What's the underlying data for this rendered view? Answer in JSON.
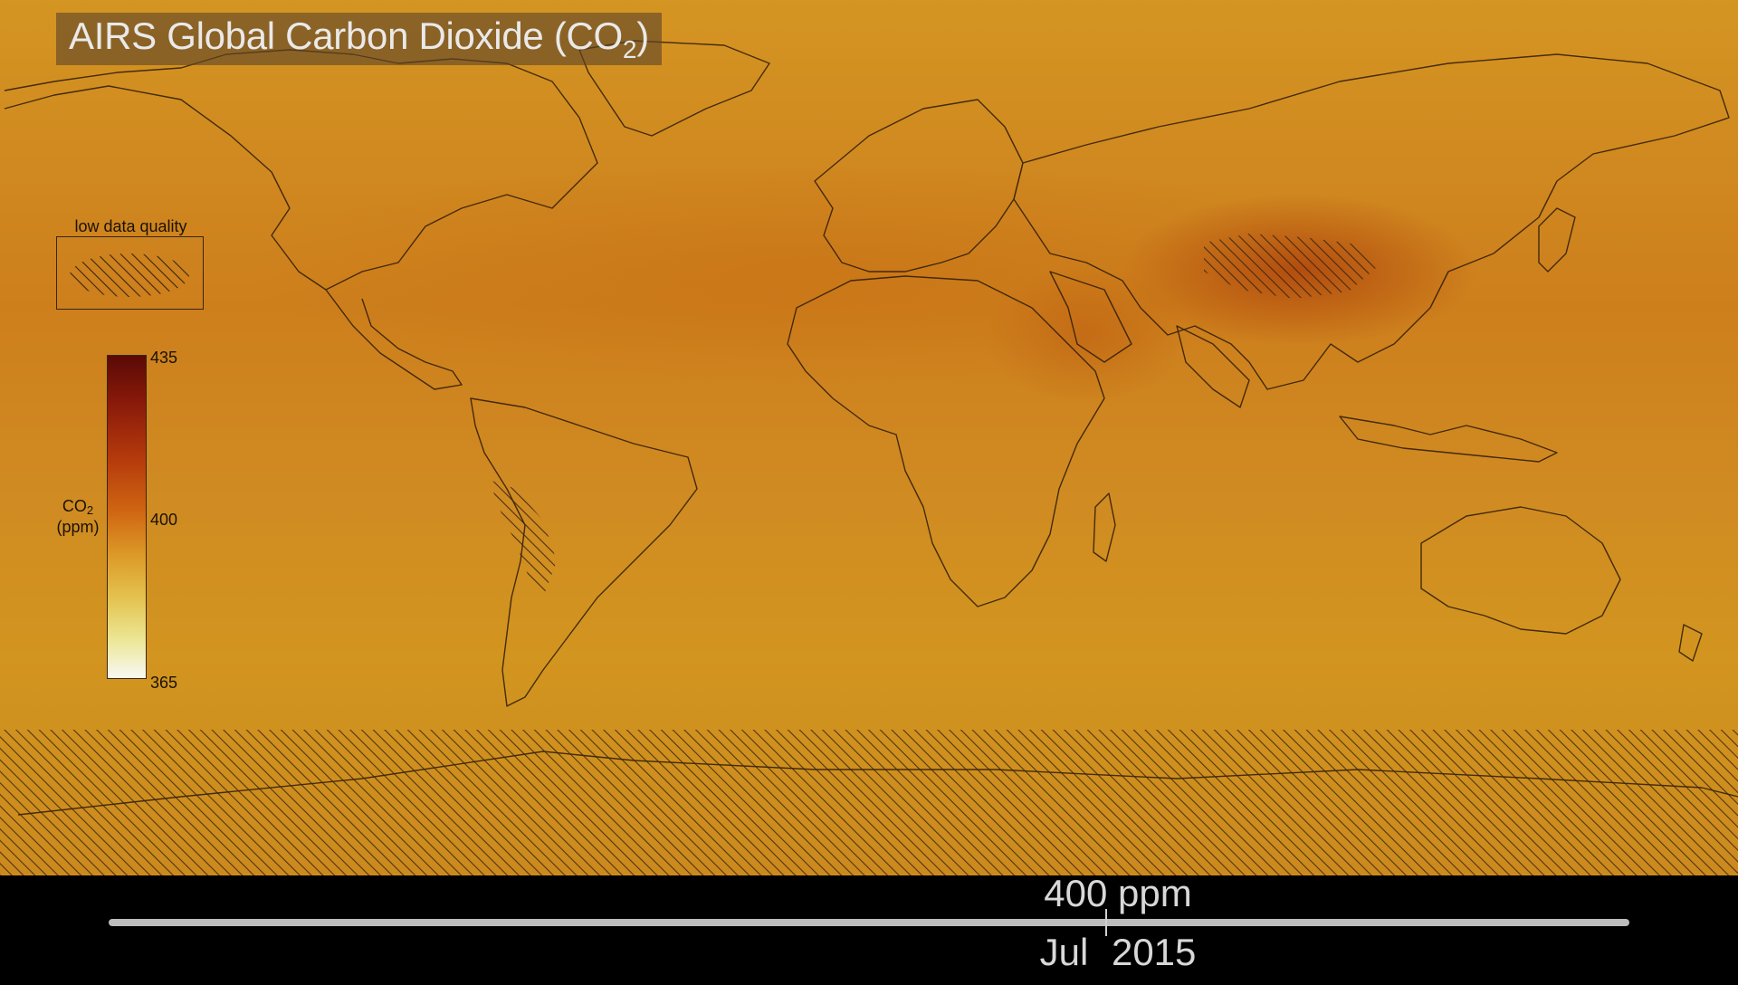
{
  "title": {
    "prefix": "AIRS Global Carbon Dioxide (CO",
    "subscript": "2",
    "suffix": ")"
  },
  "legend": {
    "low_quality_label": "low data quality"
  },
  "colorbar": {
    "label_main": "CO",
    "label_sub": "2",
    "label_unit": "(ppm)",
    "max": "435",
    "mid": "400",
    "min": "365",
    "colors": [
      "#5a0a06",
      "#b53a0c",
      "#dc9a28",
      "#ece694",
      "#f8f8f4"
    ]
  },
  "timeline": {
    "value": "400 ppm",
    "month": "Jul",
    "year": "2015"
  },
  "map": {
    "background_color": "#d08a22",
    "hatch_color": "#3a2510",
    "projection": "equirectangular world map with country outlines"
  }
}
